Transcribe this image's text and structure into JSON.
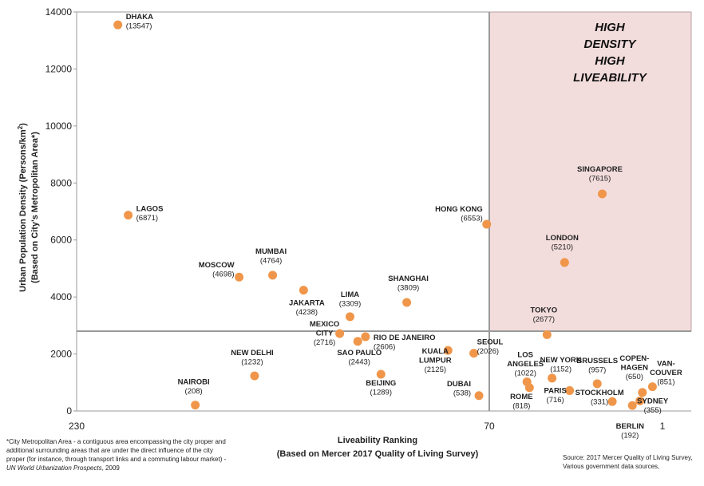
{
  "chart_data": {
    "type": "scatter",
    "title": "",
    "xlabel": "Liveability Ranking",
    "xlabel_sub": "(Based on Mercer 2017 Quality of Living Survey)",
    "ylabel": "Urban Population Density (Persons/km²)",
    "ylabel_sub": "(Based on City's Metropolitan Area*)",
    "ylim": [
      0,
      14000
    ],
    "yticks": [
      "0",
      "2000",
      "4000",
      "6000",
      "8000",
      "10000",
      "12000",
      "14000"
    ],
    "x_scale": "liveability ranking, reversed (230 on left, 1 on right)",
    "x_ticks": [
      "230",
      "70",
      "1"
    ],
    "x_ticks_values": [
      230,
      70,
      1
    ],
    "dividers": {
      "x_rank": 70,
      "y_density": 2800
    },
    "quadrant": {
      "lines": [
        "HIGH",
        "DENSITY",
        "HIGH",
        "LIVEABILITY"
      ],
      "color": "#f3dcdc"
    },
    "point_color": "#f0964a",
    "points": [
      {
        "lines": [
          "DHAKA"
        ],
        "value": "(13547)",
        "density": 13547,
        "rank": 214
      },
      {
        "lines": [
          "LAGOS"
        ],
        "value": "(6871)",
        "density": 6871,
        "rank": 210
      },
      {
        "lines": [
          "MOSCOW"
        ],
        "value": "(4698)",
        "density": 4698,
        "rank": 167
      },
      {
        "lines": [
          "MUMBAI"
        ],
        "value": "(4764)",
        "density": 4764,
        "rank": 154
      },
      {
        "lines": [
          "JAKARTA"
        ],
        "value": "(4238)",
        "density": 4238,
        "rank": 142
      },
      {
        "lines": [
          "LIMA"
        ],
        "value": "(3309)",
        "density": 3309,
        "rank": 124
      },
      {
        "lines": [
          "SHANGHAI"
        ],
        "value": "(3809)",
        "density": 3809,
        "rank": 102
      },
      {
        "lines": [
          "HONG KONG"
        ],
        "value": "(6553)",
        "density": 6553,
        "rank": 71
      },
      {
        "lines": [
          "SINGAPORE"
        ],
        "value": "(7615)",
        "density": 7615,
        "rank": 25
      },
      {
        "lines": [
          "LONDON"
        ],
        "value": "(5210)",
        "density": 5210,
        "rank": 40
      },
      {
        "lines": [
          "TOKYO"
        ],
        "value": "(2677)",
        "density": 2677,
        "rank": 47
      },
      {
        "lines": [
          "MEXICO",
          "CITY"
        ],
        "value": "(2716)",
        "density": 2716,
        "rank": 128
      },
      {
        "lines": [
          "RIO DE JANEIRO"
        ],
        "value": "(2606)",
        "density": 2606,
        "rank": 118
      },
      {
        "lines": [
          "SAO PAULO"
        ],
        "value": "(2443)",
        "density": 2443,
        "rank": 121
      },
      {
        "lines": [
          "NEW DELHI"
        ],
        "value": "(1232)",
        "density": 1232,
        "rank": 161
      },
      {
        "lines": [
          "BEIJING"
        ],
        "value": "(1289)",
        "density": 1289,
        "rank": 112
      },
      {
        "lines": [
          "KUALA",
          "LUMPUR"
        ],
        "value": "(2125)",
        "density": 2125,
        "rank": 86
      },
      {
        "lines": [
          "SEOUL"
        ],
        "value": "(2026)",
        "density": 2026,
        "rank": 76
      },
      {
        "lines": [
          "DUBAI"
        ],
        "value": "(538)",
        "density": 538,
        "rank": 74
      },
      {
        "lines": [
          "NAIROBI"
        ],
        "value": "(208)",
        "density": 208,
        "rank": 184
      },
      {
        "lines": [
          "LOS",
          "ANGELES"
        ],
        "value": "(1022)",
        "density": 1022,
        "rank": 55
      },
      {
        "lines": [
          "ROME"
        ],
        "value": "(818)",
        "density": 818,
        "rank": 54
      },
      {
        "lines": [
          "NEW YORK"
        ],
        "value": "(1152)",
        "density": 1152,
        "rank": 45
      },
      {
        "lines": [
          "PARIS"
        ],
        "value": "(716)",
        "density": 716,
        "rank": 38
      },
      {
        "lines": [
          "BRUSSELS"
        ],
        "value": "(957)",
        "density": 957,
        "rank": 27
      },
      {
        "lines": [
          "STOCKHOLM"
        ],
        "value": "(331)",
        "density": 331,
        "rank": 21
      },
      {
        "lines": [
          "COPEN-",
          "HAGEN"
        ],
        "value": "(650)",
        "density": 650,
        "rank": 9
      },
      {
        "lines": [
          "VAN-",
          "COUVER"
        ],
        "value": "(851)",
        "density": 851,
        "rank": 5
      },
      {
        "lines": [
          "SYDNEY"
        ],
        "value": "(355)",
        "density": 355,
        "rank": 10
      },
      {
        "lines": [
          "BERLIN"
        ],
        "value": "(192)",
        "density": 192,
        "rank": 13
      }
    ]
  },
  "footnote": {
    "lead": "*City Metropolitan Area - a contiguous area encompassing the city proper and additional surrounding areas that are under the direct influence of the city proper (for instance, through transport links and a commuting labour market) - ",
    "source_italic": "UN World Urbanization Prospects",
    "tail": ", 2009"
  },
  "source": "Source: 2017 Mercer Quality of Living Survey, Various government data sources,"
}
